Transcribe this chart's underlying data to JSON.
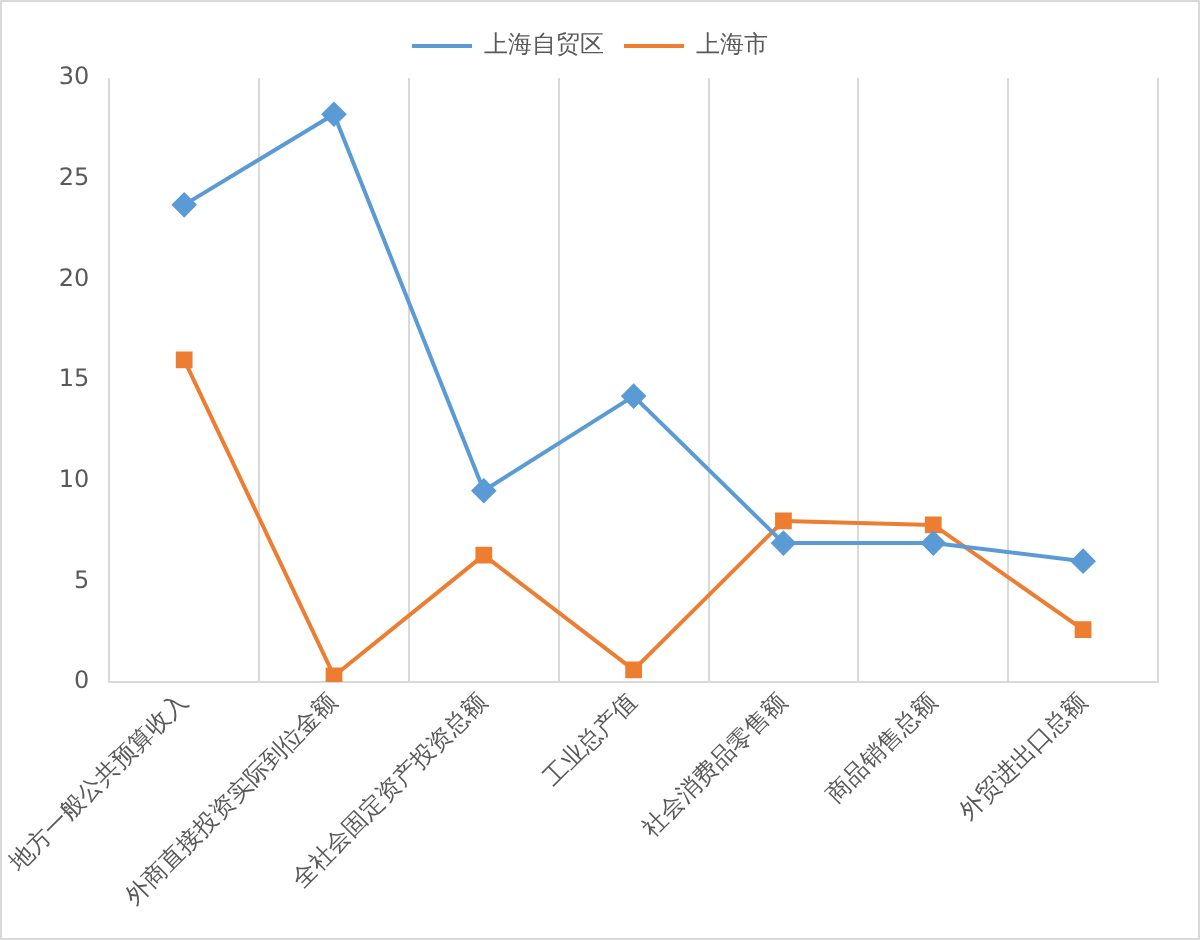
{
  "chart_data": {
    "type": "line",
    "categories": [
      "地方一般公共预算收入",
      "外商直接投资实际到位金额",
      "全社会固定资产投资总额",
      "工业总产值",
      "社会消费品零售额",
      "商品销售总额",
      "外贸进出口总额"
    ],
    "series": [
      {
        "name": "上海自贸区",
        "color": "#5b9bd5",
        "marker": "diamond",
        "values": [
          23.7,
          28.2,
          9.5,
          14.2,
          6.9,
          6.9,
          6.0
        ]
      },
      {
        "name": "上海市",
        "color": "#ed7d31",
        "marker": "square",
        "values": [
          16.0,
          0.3,
          6.3,
          0.6,
          8.0,
          7.8,
          2.6
        ]
      }
    ],
    "ylim": [
      0,
      30
    ],
    "yticks": [
      0,
      5,
      10,
      15,
      20,
      25,
      30
    ],
    "grid": "x",
    "legend": "top",
    "line_style": "solid"
  }
}
